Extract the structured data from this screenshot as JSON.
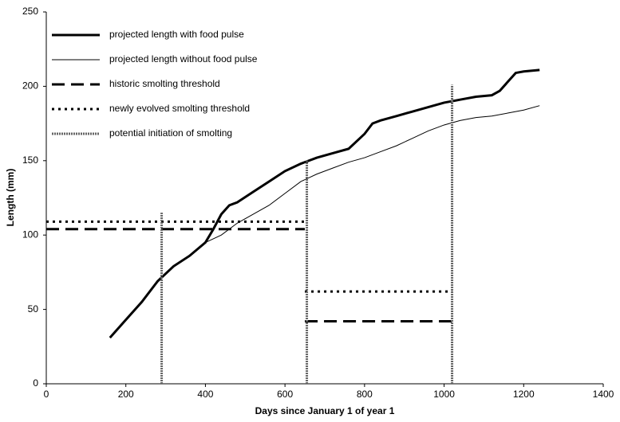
{
  "chart_data": {
    "type": "line",
    "xlabel": "Days since January 1 of year 1",
    "ylabel": "Length (mm)",
    "xlim": [
      0,
      1400
    ],
    "xticks": [
      0,
      200,
      400,
      600,
      800,
      1000,
      1200,
      1400
    ],
    "ylim": [
      0,
      250
    ],
    "yticks": [
      0,
      50,
      100,
      150,
      200,
      250
    ],
    "legend": "upper left",
    "series": [
      {
        "name": "projected length with food pulse",
        "color": "#000000",
        "width": 3,
        "dash": "solid",
        "x": [
          160,
          200,
          240,
          280,
          320,
          360,
          400,
          420,
          440,
          460,
          480,
          520,
          560,
          600,
          640,
          680,
          720,
          760,
          800,
          820,
          840,
          880,
          920,
          960,
          1000,
          1040,
          1080,
          1120,
          1140,
          1160,
          1180,
          1200,
          1240
        ],
        "values": [
          31,
          43,
          55,
          69,
          79,
          86,
          95,
          104,
          114,
          120,
          122,
          129,
          136,
          143,
          148,
          152,
          155,
          158,
          168,
          175,
          177,
          180,
          183,
          186,
          189,
          191,
          193,
          194,
          197,
          203,
          209,
          210,
          211
        ]
      },
      {
        "name": "projected length without food pulse",
        "color": "#000000",
        "width": 1,
        "dash": "solid",
        "x": [
          400,
          440,
          480,
          520,
          560,
          600,
          640,
          680,
          720,
          760,
          800,
          840,
          880,
          920,
          960,
          1000,
          1040,
          1080,
          1120,
          1160,
          1200,
          1240
        ],
        "values": [
          95,
          100,
          108,
          114,
          120,
          128,
          136,
          141,
          145,
          149,
          152,
          156,
          160,
          165,
          170,
          174,
          177,
          179,
          180,
          182,
          184,
          187
        ]
      },
      {
        "name": "historic  smolting threshold",
        "color": "#000000",
        "width": 3,
        "dash": "long-dash",
        "x": [
          0,
          650,
          650,
          650,
          1020
        ],
        "values": [
          104,
          104,
          null,
          42,
          42
        ]
      },
      {
        "name": "newly evolved smolting threshold",
        "color": "#000000",
        "width": 3,
        "dash": "dot",
        "x": [
          0,
          650,
          650,
          650,
          1020
        ],
        "values": [
          109,
          109,
          null,
          62,
          62
        ]
      },
      {
        "name": "potential initiation of smolting",
        "color": "#666666",
        "width": 3,
        "dash": "vertical",
        "x": [
          290,
          655,
          1020
        ],
        "values": [
          115,
          150,
          201
        ]
      }
    ]
  }
}
